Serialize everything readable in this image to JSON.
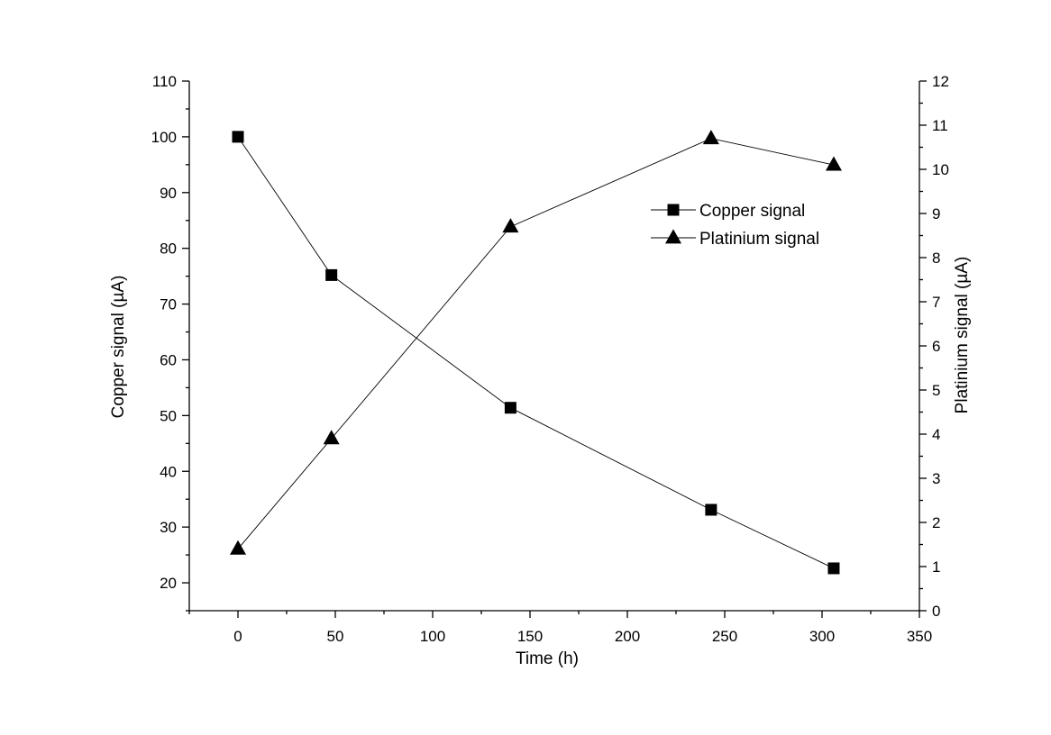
{
  "chart_data": {
    "type": "line",
    "xlabel": "Time (h)",
    "ylabel_left": "Copper signal (µA)",
    "ylabel_right": "Platinium signal (µA)",
    "xlim": [
      -25,
      350
    ],
    "ylim_left": [
      15,
      110
    ],
    "ylim_right": [
      0,
      12
    ],
    "x_ticks": [
      0,
      50,
      100,
      150,
      200,
      250,
      300,
      350
    ],
    "y_left_ticks": [
      20,
      30,
      40,
      50,
      60,
      70,
      80,
      90,
      100,
      110
    ],
    "y_right_ticks": [
      0,
      1,
      2,
      3,
      4,
      5,
      6,
      7,
      8,
      9,
      10,
      11,
      12
    ],
    "legend_position": "upper-right",
    "series": [
      {
        "name": "Copper signal",
        "axis": "left",
        "marker": "square",
        "color": "#000000",
        "x": [
          0,
          48,
          140,
          243,
          306
        ],
        "y": [
          100,
          75.2,
          51.4,
          33.1,
          22.6
        ]
      },
      {
        "name": "Platinium signal",
        "axis": "right",
        "marker": "triangle",
        "color": "#000000",
        "x": [
          0,
          48,
          140,
          243,
          306
        ],
        "y": [
          1.4,
          3.9,
          8.7,
          10.7,
          10.1
        ]
      }
    ]
  }
}
